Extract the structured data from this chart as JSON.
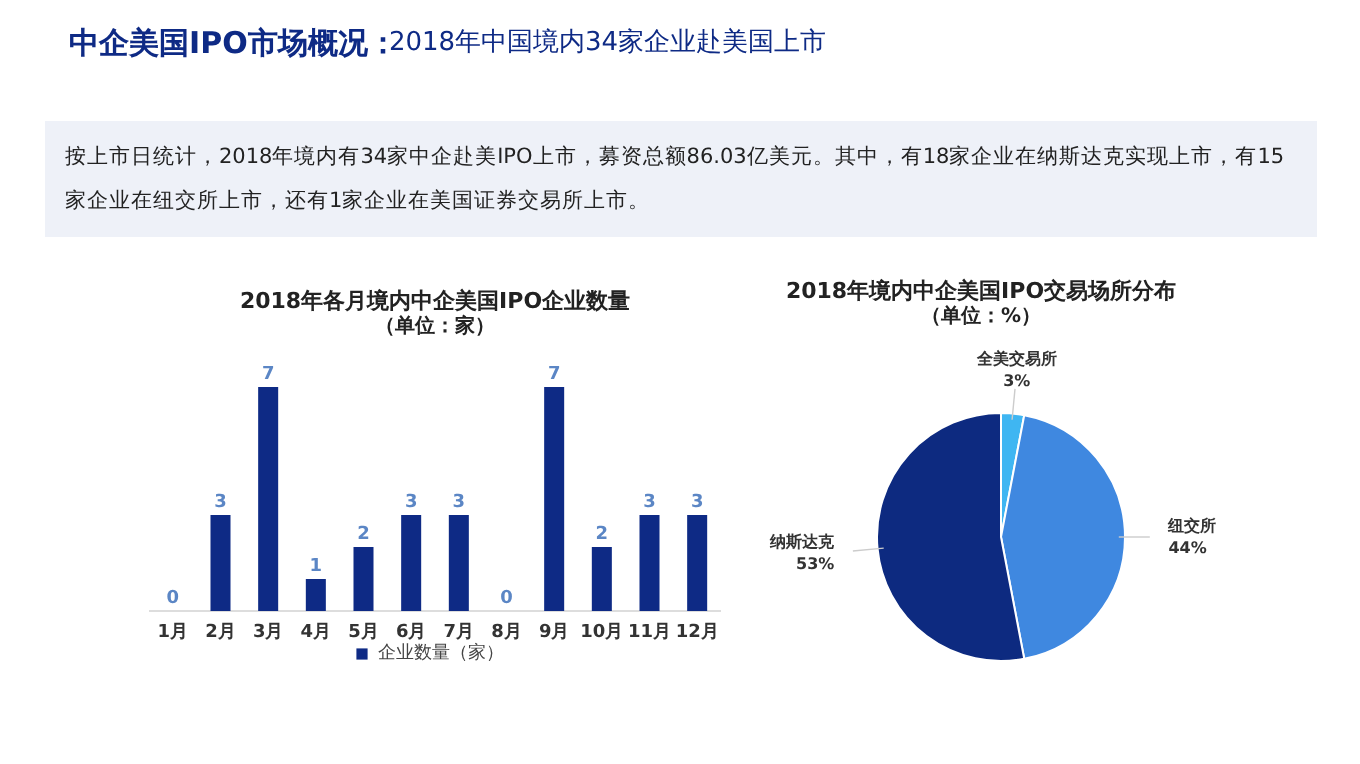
{
  "chart_data": [
    {
      "type": "bar",
      "title": "2018年各月境内中企美国IPO企业数量",
      "subtitle": "（单位：家）",
      "annotations": [
        "中企美国IPO市场概况：",
        "2018年中国境内34家企业赴美国上市",
        "按上市日统计，2018年境内有34家中企赴美IPO上市，募资总额86.03亿美元。其中，有18家企业在纳斯达克实现上市，有15家企业在纽交所上市，还有1家企业在美国证券交易所上市。"
      ],
      "categories": [
        "1月",
        "2月",
        "3月",
        "4月",
        "5月",
        "6月",
        "7月",
        "8月",
        "9月",
        "10月",
        "11月",
        "12月"
      ],
      "series": [
        {
          "name": "企业数量（家）",
          "color": "#0e2a85",
          "values": [
            0,
            3,
            7,
            1,
            2,
            3,
            3,
            0,
            7,
            2,
            3,
            3
          ]
        }
      ],
      "data_labels": true,
      "legend": "bottom",
      "grid": false
    },
    {
      "type": "pie",
      "title": "2018年境内中企美国IPO交易场所分布",
      "subtitle": "（单位：%）",
      "categories": [
        "全美交易所",
        "纽交所",
        "纳斯达克"
      ],
      "values": [
        3,
        44,
        53
      ],
      "colors": [
        "#3fb6f2",
        "#3f88e0",
        "#0d2a80"
      ],
      "value_labels": [
        "3%",
        "44%",
        "53%"
      ],
      "legend": false
    }
  ]
}
